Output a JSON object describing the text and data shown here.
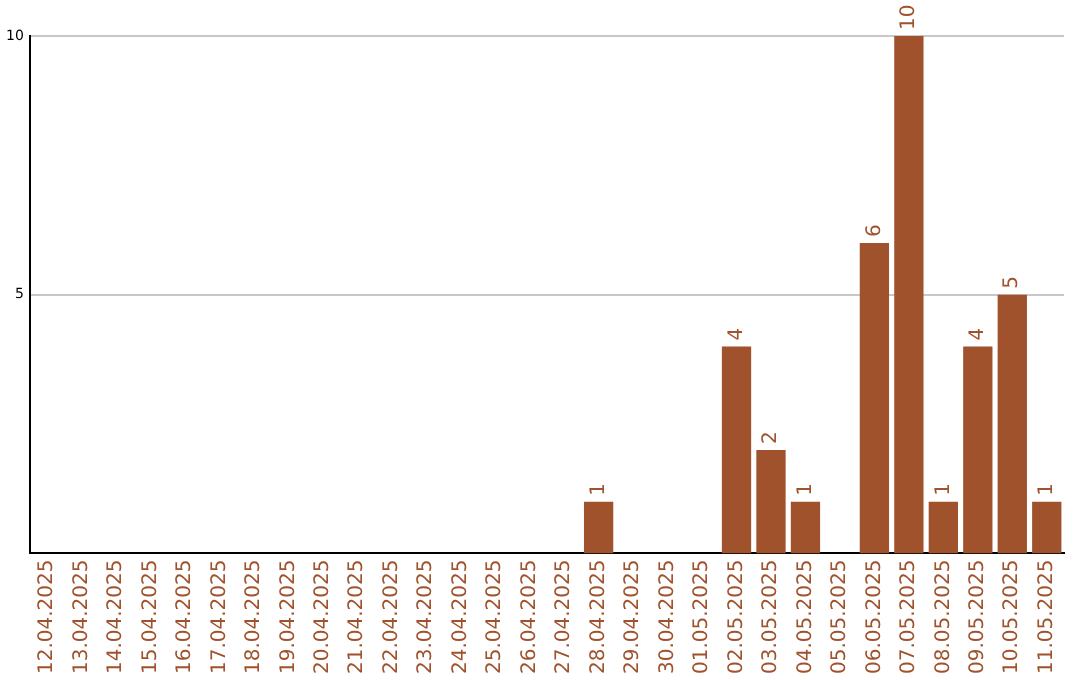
{
  "chart_data": {
    "type": "bar",
    "categories": [
      "12.04.2025",
      "13.04.2025",
      "14.04.2025",
      "15.04.2025",
      "16.04.2025",
      "17.04.2025",
      "18.04.2025",
      "19.04.2025",
      "20.04.2025",
      "21.04.2025",
      "22.04.2025",
      "23.04.2025",
      "24.04.2025",
      "25.04.2025",
      "26.04.2025",
      "27.04.2025",
      "28.04.2025",
      "29.04.2025",
      "30.04.2025",
      "01.05.2025",
      "02.05.2025",
      "03.05.2025",
      "04.05.2025",
      "05.05.2025",
      "06.05.2025",
      "07.05.2025",
      "08.05.2025",
      "09.05.2025",
      "10.05.2025",
      "11.05.2025"
    ],
    "values": [
      0,
      0,
      0,
      0,
      0,
      0,
      0,
      0,
      0,
      0,
      0,
      0,
      0,
      0,
      0,
      0,
      1,
      0,
      0,
      0,
      4,
      2,
      1,
      0,
      6,
      10,
      1,
      4,
      5,
      1
    ],
    "value_labels": [
      null,
      null,
      null,
      null,
      null,
      null,
      null,
      null,
      null,
      null,
      null,
      null,
      null,
      null,
      null,
      null,
      "1",
      null,
      null,
      null,
      "4",
      "2",
      "1",
      null,
      "6",
      "10",
      "1",
      "4",
      "5",
      "1"
    ],
    "color": "#a0522d",
    "ylim": [
      0,
      10
    ],
    "yticks": [
      5,
      10
    ],
    "grid": "y",
    "legend": false
  }
}
